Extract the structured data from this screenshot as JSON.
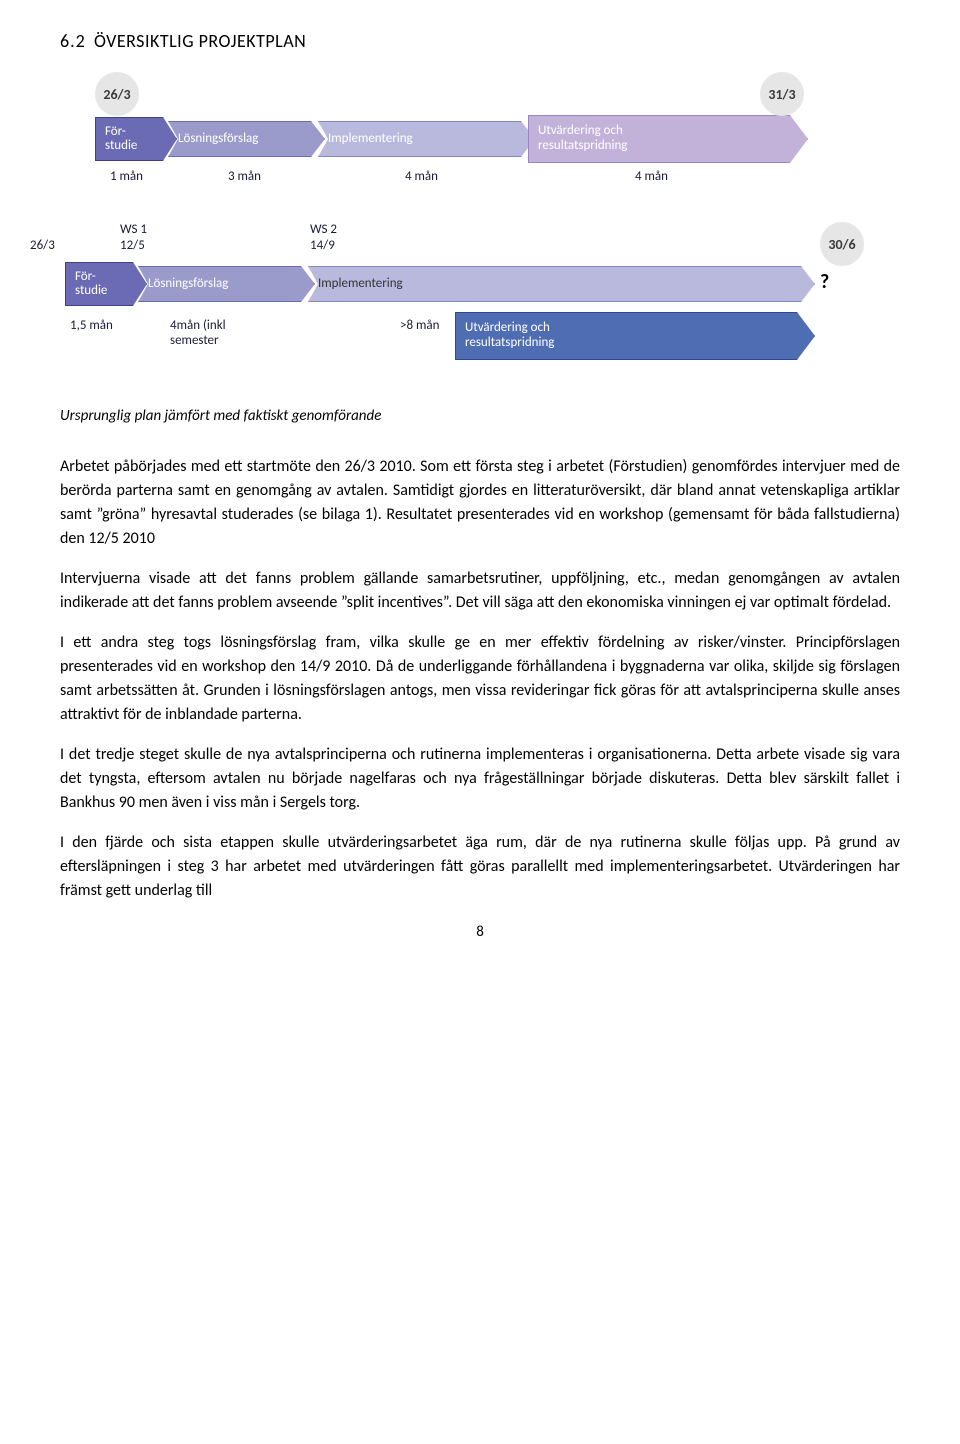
{
  "section": {
    "number": "6.2",
    "title": "ÖVERSIKTLIG PROJEKTPLAN"
  },
  "diagram": {
    "row1": {
      "circle_left": "26/3",
      "circle_right": "31/3",
      "arrows": [
        {
          "label": "För-\nstudie",
          "fill": "#6b6bb5",
          "stroke": "#3f3f8a"
        },
        {
          "label": "Lösningsförslag",
          "fill": "#9a9acb",
          "stroke": "#6b6bb5"
        },
        {
          "label": "Implementering",
          "fill": "#b9b9dd",
          "stroke": "#8686c0"
        },
        {
          "label": "Utvärdering och\nresultatspridning",
          "fill": "#c2b2d9",
          "stroke": "#9a86c0",
          "height": 48
        }
      ],
      "durations": [
        "1 mån",
        "3 mån",
        "4 mån",
        "4 mån"
      ]
    },
    "row2": {
      "left_col": {
        "label": "26/3",
        "ws": "WS 1",
        "date": "12/5"
      },
      "mid_col": {
        "ws": "WS 2",
        "date": "14/9"
      },
      "right": "30/6",
      "arrows": [
        {
          "label": "För-\nstudie",
          "fill": "#6b6bb5",
          "stroke": "#3f3f8a"
        },
        {
          "label": "Lösningsförslag",
          "fill": "#9a9acb",
          "stroke": "#6b6bb5"
        },
        {
          "label": "Implementering",
          "fill": "#b9b9dd",
          "stroke": "#8686c0"
        }
      ],
      "box": {
        "label": "Utvärdering och\nresultatspridning",
        "fill": "#4f6db3",
        "stroke": "#2d4a8f"
      },
      "durations": [
        "1,5 mån",
        "4mån (inkl\nsemester",
        ">8 mån"
      ],
      "qmark": "?"
    }
  },
  "figcap": "Ursprunglig plan jämfört med faktiskt genomförande",
  "paragraphs": [
    "Arbetet påbörjades med ett startmöte den 26/3 2010. Som ett första steg i arbetet (Förstudien) genomfördes intervjuer med de berörda parterna samt en genomgång av avtalen. Samtidigt gjordes en litteraturöversikt, där bland annat vetenskapliga artiklar samt ”gröna” hyresavtal studerades (se bilaga 1). Resultatet presenterades vid en workshop (gemensamt för båda fallstudierna) den 12/5 2010",
    "Intervjuerna visade att det fanns problem gällande samarbetsrutiner, uppföljning, etc., medan genomgången av avtalen indikerade att det fanns problem avseende ”split incentives”. Det vill säga att den ekonomiska vinningen ej var optimalt fördelad.",
    "I ett andra steg togs lösningsförslag fram, vilka skulle ge en mer effektiv fördelning av risker/vinster. Principförslagen presenterades vid en workshop den 14/9 2010. Då de underliggande förhållandena i byggnaderna var olika, skiljde sig förslagen samt arbetssätten åt. Grunden i lösningsförslagen antogs, men vissa revideringar fick göras för att avtalsprinciperna skulle anses attraktivt för de inblandade parterna.",
    "I det tredje steget skulle de nya avtalsprinciperna och rutinerna implementeras i organisationerna.  Detta arbete visade sig vara det tyngsta, eftersom avtalen nu började nagelfaras och nya frågeställningar började diskuteras. Detta blev särskilt fallet i Bankhus 90 men även i viss mån i Sergels torg.",
    "I den fjärde och sista etappen skulle utvärderingsarbetet äga rum, där de nya rutinerna skulle följas upp. På grund av eftersläpningen i steg 3 har arbetet med utvärderingen fått göras parallellt med implementeringsarbetet. Utvärderingen har främst gett underlag till"
  ],
  "pagenum": "8"
}
